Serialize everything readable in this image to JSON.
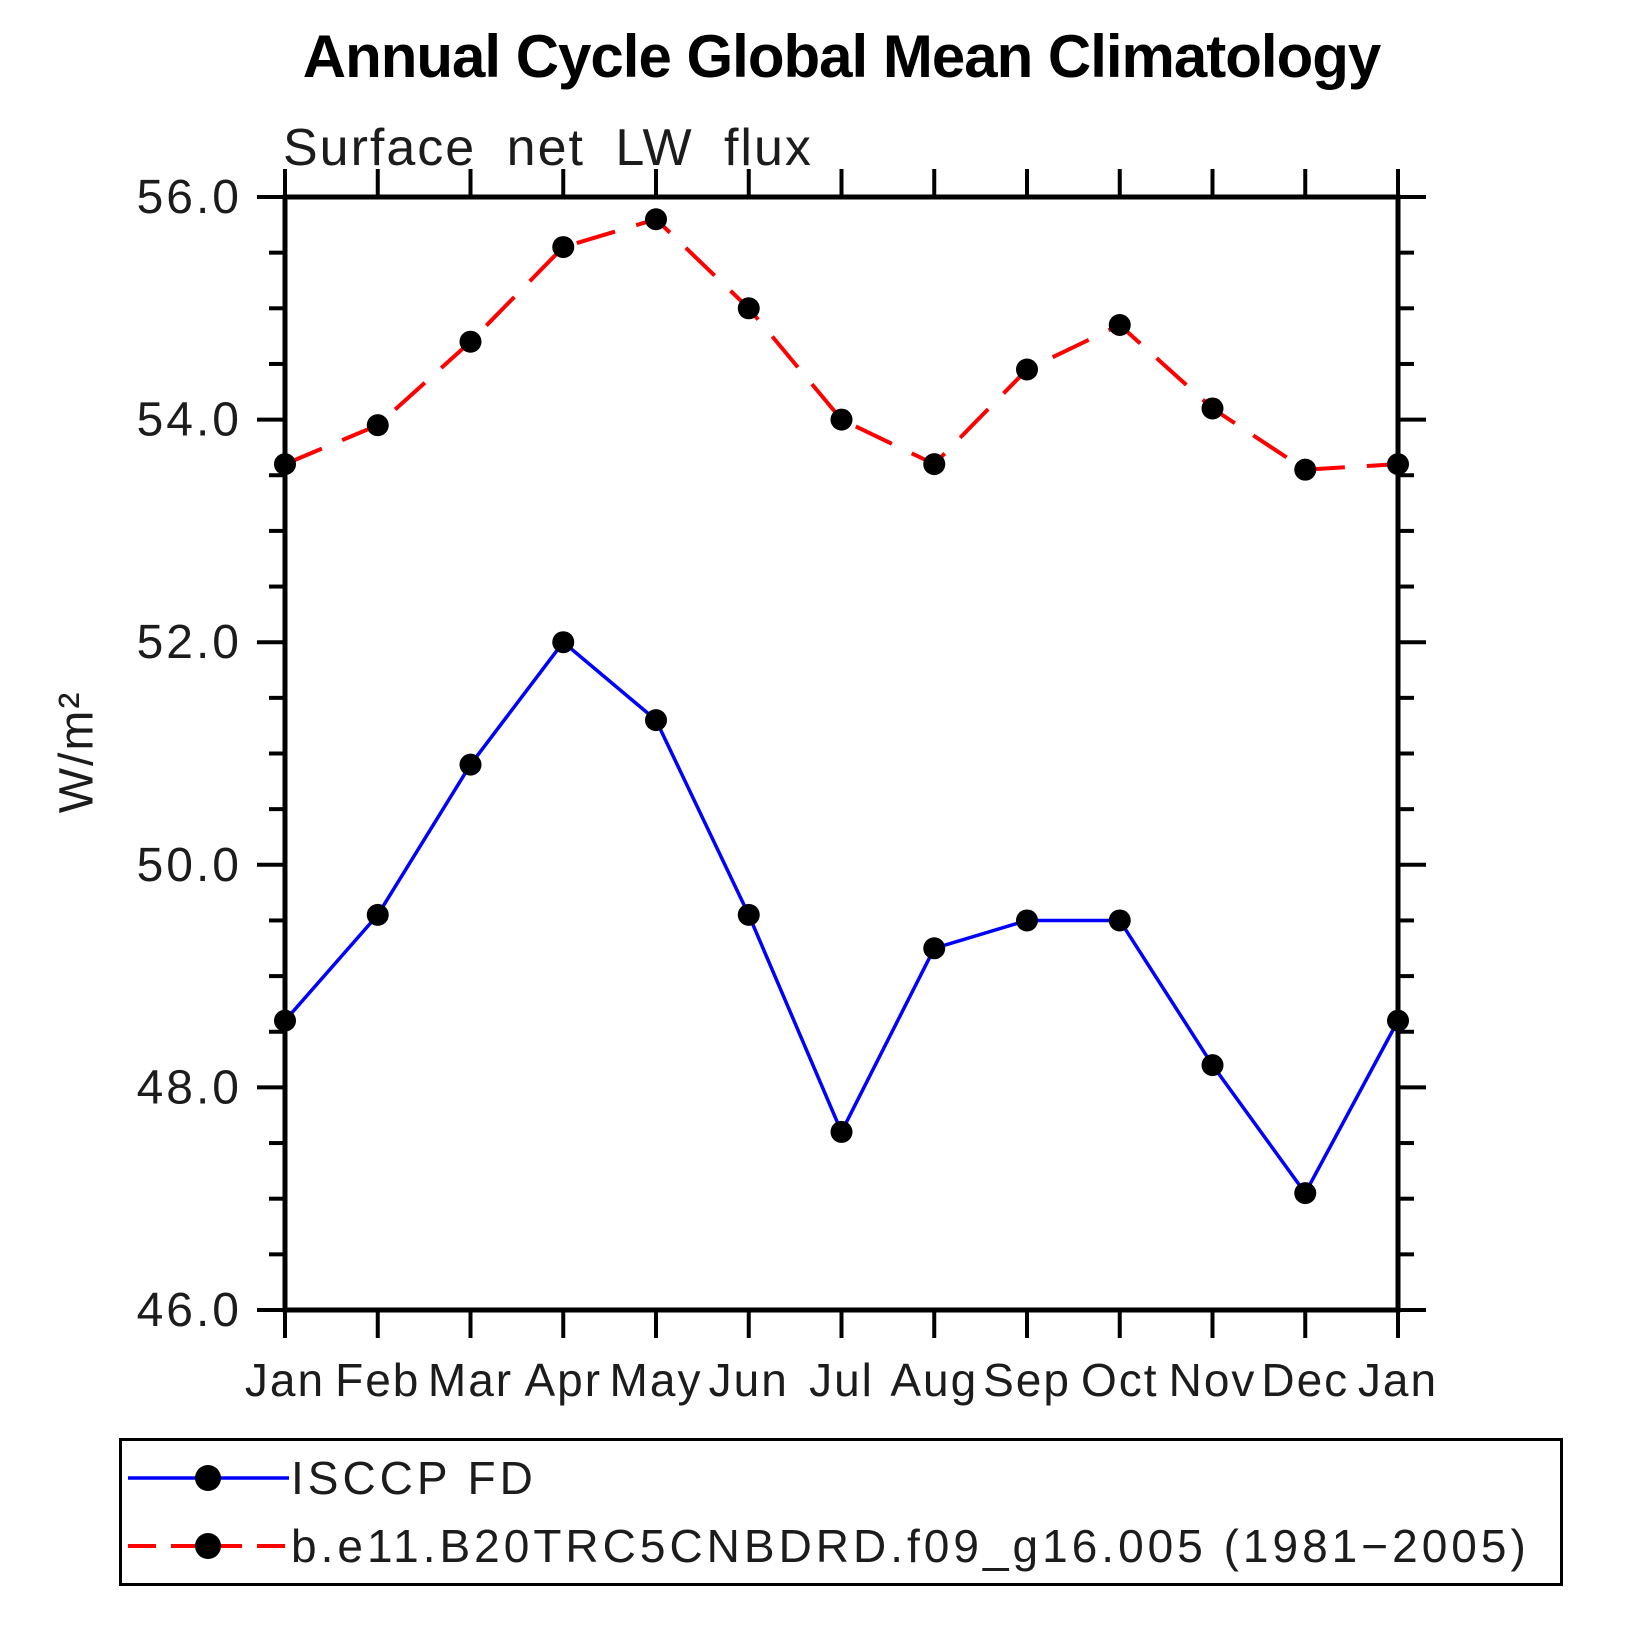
{
  "chart": {
    "window_kind": "static-plot-image"
  },
  "chart_data": {
    "type": "line",
    "title": "Annual Cycle Global Mean Climatology",
    "subtitle": "Surface net LW flux",
    "ylabel": "W/m²",
    "xlabel": "",
    "categories": [
      "Jan",
      "Feb",
      "Mar",
      "Apr",
      "May",
      "Jun",
      "Jul",
      "Aug",
      "Sep",
      "Oct",
      "Nov",
      "Dec",
      "Jan"
    ],
    "series": [
      {
        "name": "ISCCP FD",
        "color": "#0000ff",
        "line_style": "solid",
        "line_width": 3.5,
        "marker": "circle",
        "marker_color": "#000000",
        "values": [
          48.6,
          49.55,
          50.9,
          52.0,
          51.3,
          49.55,
          47.6,
          49.25,
          49.5,
          49.5,
          48.2,
          47.05,
          48.6
        ]
      },
      {
        "name": "b.e11.B20TRC5CNBDRD.f09_g16.005 (1981−2005)",
        "color": "#ff0000",
        "line_style": "dashed",
        "line_width": 4,
        "marker": "circle",
        "marker_color": "#000000",
        "values": [
          53.6,
          53.95,
          54.7,
          55.55,
          55.8,
          55.0,
          54.0,
          53.6,
          54.45,
          54.85,
          54.1,
          53.55,
          53.6
        ]
      }
    ],
    "ylim": [
      46.0,
      56.0
    ],
    "y_major_tick_labels": [
      "46.0",
      "48.0",
      "50.0",
      "52.0",
      "54.0",
      "56.0"
    ],
    "y_major_step": 2.0,
    "y_minor_step": 0.5,
    "grid": false,
    "axis_color": "#000000",
    "background_color": "#ffffff",
    "legend_position": "bottom-box"
  }
}
